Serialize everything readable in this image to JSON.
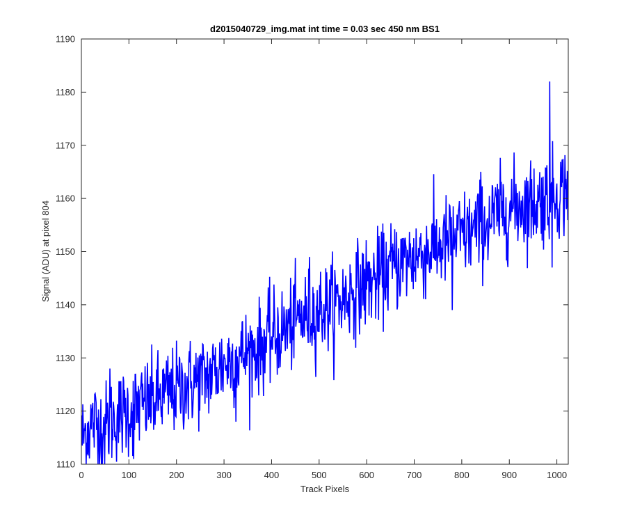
{
  "chart_data": {
    "type": "line",
    "title": "d2015040729_img.mat int time = 0.03 sec  450 nm BS1",
    "xlabel": "Track Pixels",
    "ylabel": "Signal (ADU) at pixel 804",
    "xlim": [
      0,
      1024
    ],
    "ylim": [
      1110,
      1190
    ],
    "xticks": [
      0,
      100,
      200,
      300,
      400,
      500,
      600,
      700,
      800,
      900,
      1000
    ],
    "yticks": [
      1110,
      1120,
      1130,
      1140,
      1150,
      1160,
      1170,
      1180,
      1190
    ],
    "grid": false,
    "line_color": "#0000ff",
    "series": [
      {
        "x": [
          0,
          25,
          50,
          75,
          100,
          125,
          150,
          175,
          200,
          225,
          250,
          275,
          300,
          325,
          350,
          375,
          400,
          425,
          450,
          475,
          500,
          525,
          550,
          575,
          600,
          625,
          650,
          675,
          700,
          725,
          750,
          775,
          800,
          825,
          850,
          875,
          900,
          925,
          950,
          975,
          1000,
          1023
        ],
        "y": [
          1115,
          1118,
          1117,
          1119,
          1120,
          1121,
          1122,
          1123,
          1124,
          1125,
          1126,
          1127,
          1129,
          1130,
          1131,
          1132,
          1134,
          1135,
          1137,
          1138,
          1139,
          1140,
          1141,
          1143,
          1144,
          1145,
          1147,
          1148,
          1149,
          1150,
          1151,
          1152,
          1153,
          1154,
          1155,
          1157,
          1158,
          1159,
          1159,
          1160,
          1161,
          1162
        ],
        "noise_amplitude": 5,
        "spikes": [
          [
            35,
            1110
          ],
          [
            60,
            1128
          ],
          [
            110,
            1111
          ],
          [
            325,
            1118
          ],
          [
            480,
            1149
          ],
          [
            530,
            1134
          ],
          [
            780,
            1139
          ],
          [
            840,
            1165
          ],
          [
            985,
            1182
          ],
          [
            990,
            1147
          ],
          [
            1020,
            1158
          ]
        ]
      }
    ]
  }
}
